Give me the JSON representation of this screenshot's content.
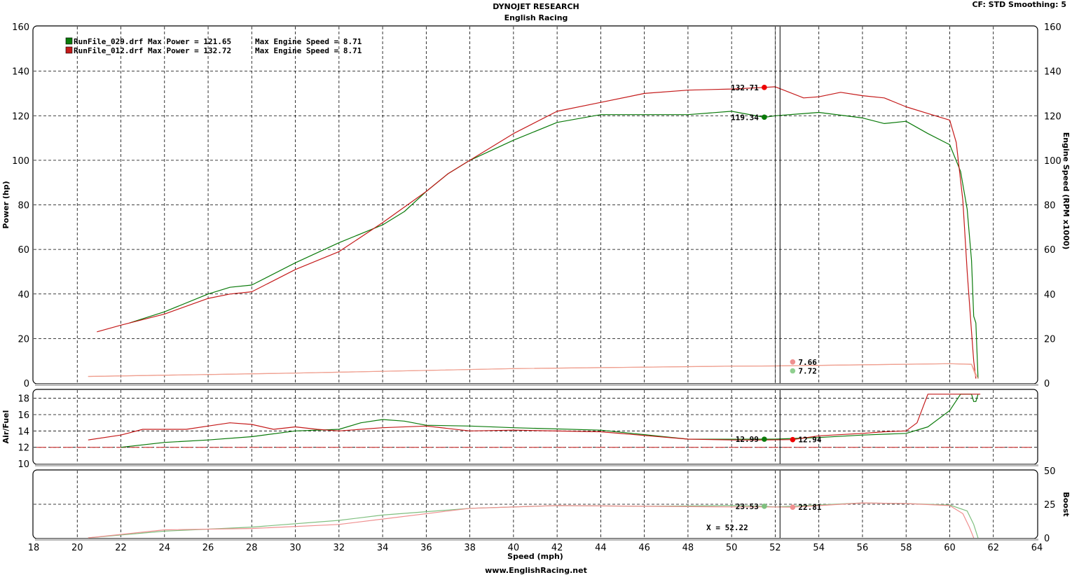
{
  "header": {
    "title": "DYNOJET RESEARCH",
    "subtitle": "English Racing",
    "cf_info": "CF: STD  Smoothing: 5"
  },
  "footer": {
    "text": "www.EnglishRacing.net"
  },
  "colors": {
    "run029": "#0a7a0a",
    "run012": "#c41a1a",
    "afr_ref": "#cc3333",
    "grid": "#000000"
  },
  "legend": [
    {
      "file": "RunFile_029.drf",
      "power_label": "Max Power = 121.65",
      "speed_label": "Max Engine Speed = 8.71",
      "color": "#0a7a0a"
    },
    {
      "file": "RunFile_012.drf",
      "power_label": "Max Power = 132.72",
      "speed_label": "Max Engine Speed = 8.71",
      "color": "#c41a1a"
    }
  ],
  "chart_data": [
    {
      "type": "line",
      "panel": "power",
      "xlabel": "Speed (mph)",
      "ylabel": "Power (hp)",
      "y2label": "Engine Speed (RPM x1000)",
      "xlim": [
        18,
        64
      ],
      "ylim": [
        0,
        160
      ],
      "y2lim": [
        0,
        160
      ],
      "grid": true,
      "legend_placement": "top-left",
      "x_ticks": [
        "18",
        "20",
        "22",
        "24",
        "26",
        "28",
        "30",
        "32",
        "34",
        "36",
        "38",
        "40",
        "42",
        "44",
        "46",
        "48",
        "50",
        "52",
        "54",
        "56",
        "58",
        "60",
        "62",
        "64"
      ],
      "y_ticks": [
        "0",
        "20",
        "40",
        "60",
        "80",
        "100",
        "120",
        "140",
        "160"
      ],
      "cursor_x": 52.22,
      "series": [
        {
          "name": "RunFile_029.drf",
          "color": "#0a7a0a",
          "role": "power",
          "x": [
            22.4,
            24,
            26,
            27,
            28,
            30,
            32,
            34,
            35,
            36,
            37,
            38,
            40,
            42,
            44,
            46,
            48,
            50,
            51.5,
            52,
            54,
            56,
            57,
            58,
            59,
            60,
            60.5,
            60.8,
            61,
            61.1,
            61.2,
            61.3
          ],
          "y": [
            27,
            32,
            40,
            43,
            44,
            54,
            63,
            71,
            77,
            86,
            94,
            100,
            109,
            117,
            120.5,
            120.5,
            120.5,
            122,
            119.3,
            120,
            121.5,
            119,
            116.5,
            117.5,
            112,
            107,
            95,
            78,
            55,
            30,
            27,
            2
          ]
        },
        {
          "name": "RunFile_012.drf",
          "color": "#c41a1a",
          "role": "power",
          "x": [
            20.9,
            22,
            24,
            26,
            27,
            28,
            30,
            32,
            34,
            36,
            37,
            38,
            40,
            42,
            44,
            46,
            48,
            50,
            51.5,
            52,
            53.3,
            54,
            55,
            56,
            57,
            58,
            59,
            60,
            60.3,
            60.6,
            60.8,
            61,
            61.1,
            61.2
          ],
          "y": [
            23,
            26,
            31,
            38,
            40,
            41,
            51,
            59,
            72,
            86,
            94,
            100,
            112,
            122,
            126,
            130,
            131.5,
            132,
            132.7,
            133,
            128,
            128.5,
            130.5,
            129,
            128,
            124,
            121,
            118,
            108,
            82,
            50,
            23,
            10,
            2
          ]
        },
        {
          "name": "RunFile_029.drf",
          "color": "#ef9f8f",
          "role": "engine_speed",
          "x": [
            20.5,
            30,
            40,
            50,
            52,
            60,
            61,
            61.3
          ],
          "y": [
            3,
            4.5,
            6.5,
            7.6,
            7.7,
            8.7,
            8.5,
            2
          ]
        },
        {
          "name": "RunFile_012.drf",
          "color": "#ef9f8f",
          "role": "engine_speed",
          "x": [
            20.5,
            30,
            40,
            50,
            52,
            60,
            61,
            61.2
          ],
          "y": [
            3,
            4.5,
            6.5,
            7.6,
            7.7,
            8.7,
            8.4,
            3
          ]
        }
      ],
      "markers": [
        {
          "label": "132.71",
          "x": 51.5,
          "y": 132.71,
          "color": "#ee0000"
        },
        {
          "label": "119.34",
          "x": 51.5,
          "y": 119.34,
          "color": "#0a7a0a"
        },
        {
          "label": "7.66",
          "x": 52.8,
          "y": 9.5,
          "color": "#ef8f8f"
        },
        {
          "label": "7.72",
          "x": 52.8,
          "y": 5.5,
          "color": "#8fcf8f"
        }
      ]
    },
    {
      "type": "line",
      "panel": "air_fuel",
      "ylabel": "Air/Fuel",
      "xlim": [
        18,
        64
      ],
      "ylim": [
        10,
        19
      ],
      "y_ticks": [
        "10",
        "12",
        "14",
        "16",
        "18"
      ],
      "reference_line": 12,
      "grid": true,
      "series": [
        {
          "name": "RunFile_029.drf",
          "color": "#0a7a0a",
          "x": [
            22,
            24,
            26,
            28,
            30,
            32,
            33,
            34,
            35,
            36,
            38,
            40,
            44,
            48,
            50,
            51.5,
            52,
            54,
            56,
            58,
            59,
            60,
            60.5,
            61,
            61.1,
            61.2,
            61.3
          ],
          "y": [
            12,
            12.6,
            12.9,
            13.3,
            14,
            14.2,
            15,
            15.4,
            15.2,
            14.7,
            14.6,
            14.4,
            14.1,
            13,
            12.99,
            13,
            13,
            13.2,
            13.5,
            13.7,
            14.5,
            16.5,
            18.5,
            18.5,
            17.6,
            17.6,
            18.5
          ]
        },
        {
          "name": "RunFile_012.drf",
          "color": "#c41a1a",
          "x": [
            20.5,
            22,
            23,
            25,
            26,
            27,
            28,
            29,
            30,
            31,
            32,
            34,
            36,
            38,
            40,
            44,
            48,
            50,
            51.5,
            52.8,
            54,
            56,
            57,
            58,
            58.5,
            59,
            60,
            61.4
          ],
          "y": [
            12.9,
            13.5,
            14.2,
            14.2,
            14.6,
            15,
            14.8,
            14.2,
            14.5,
            14.2,
            14,
            14.4,
            14.6,
            14,
            14.1,
            13.9,
            13,
            12.9,
            12.9,
            12.94,
            13.4,
            13.7,
            13.9,
            14,
            15,
            18.5,
            18.5,
            18.5
          ]
        }
      ],
      "markers": [
        {
          "label": "12.99",
          "x": 51.5,
          "y": 12.99,
          "color": "#0a7a0a"
        },
        {
          "label": "12.94",
          "x": 52.8,
          "y": 12.94,
          "color": "#ee0000"
        }
      ]
    },
    {
      "type": "line",
      "panel": "boost",
      "ylabel": "Boost",
      "xlim": [
        18,
        64
      ],
      "ylim": [
        0,
        50
      ],
      "y2_ticks": [
        "0",
        "25",
        "50"
      ],
      "grid": true,
      "series": [
        {
          "name": "RunFile_029.drf",
          "color": "#7fbf7f",
          "x": [
            20.5,
            24,
            28,
            32,
            34,
            38,
            42,
            46,
            50,
            51.5,
            52,
            56,
            58,
            60,
            60.8,
            61.1,
            61.3
          ],
          "y": [
            0,
            5,
            8,
            13,
            17,
            22,
            24,
            23.5,
            24,
            23.53,
            23,
            26,
            25.5,
            24.5,
            20,
            10,
            0
          ]
        },
        {
          "name": "RunFile_012.drf",
          "color": "#ef8f8f",
          "x": [
            20.5,
            24,
            28,
            32,
            34,
            38,
            42,
            46,
            50,
            51.5,
            52.8,
            56,
            58,
            60,
            60.6,
            60.9,
            61.1
          ],
          "y": [
            0,
            6,
            7,
            10,
            14,
            22,
            24,
            23.5,
            23,
            23,
            22.81,
            26,
            25.5,
            24,
            18,
            8,
            0
          ]
        }
      ],
      "markers": [
        {
          "label": "23.53",
          "x": 51.5,
          "y": 23.53,
          "color": "#7fbf7f"
        },
        {
          "label": "22.81",
          "x": 52.8,
          "y": 22.81,
          "color": "#ef8f8f"
        }
      ],
      "cursor_label": "X = 52.22"
    }
  ]
}
